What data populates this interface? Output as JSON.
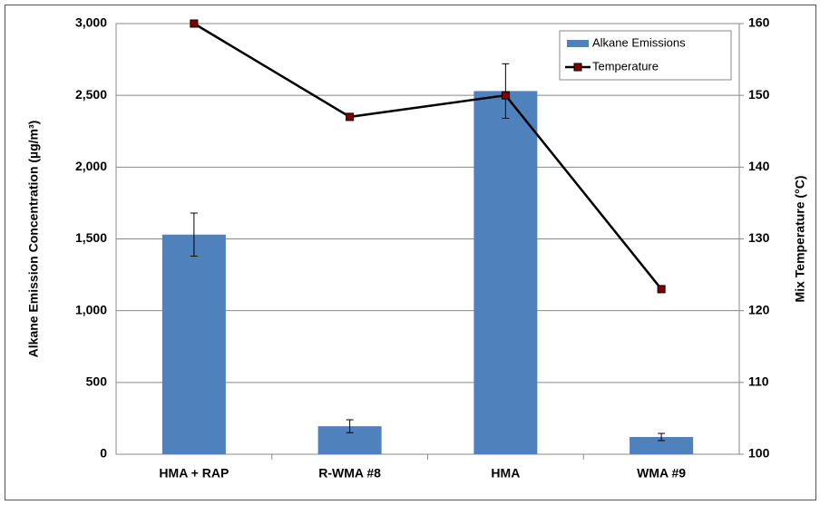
{
  "chart_data": {
    "type": "bar-line",
    "categories": [
      "HMA + RAP",
      "R-WMA #8",
      "HMA",
      "WMA #9"
    ],
    "y_label": "Alkane Emission Concentration (µg/m³)",
    "y2_label": "Mix  Temperature (°C)",
    "series": [
      {
        "name": "Alkane Emissions",
        "type": "bar",
        "color": "#4f81bd",
        "values": [
          1530,
          195,
          2530,
          120
        ],
        "errors": [
          150,
          45,
          190,
          25
        ]
      },
      {
        "name": "Temperature",
        "type": "line",
        "axis": "y2",
        "color": "#000000",
        "marker_color": "#7f0000",
        "values": [
          160,
          147,
          150,
          123
        ]
      }
    ],
    "ylim": [
      0,
      3000
    ],
    "yticks": [
      0,
      500,
      {
        "value": 1000,
        "label": "1,000"
      },
      {
        "value": 1500,
        "label": "1,500"
      },
      {
        "value": 2000,
        "label": "2,000"
      },
      {
        "value": 2500,
        "label": "2,500"
      },
      {
        "value": 3000,
        "label": "3,000"
      }
    ],
    "y2lim": [
      100,
      160
    ],
    "y2ticks": [
      100,
      110,
      120,
      130,
      140,
      150,
      160
    ],
    "grid": true,
    "legend": "top-right"
  }
}
